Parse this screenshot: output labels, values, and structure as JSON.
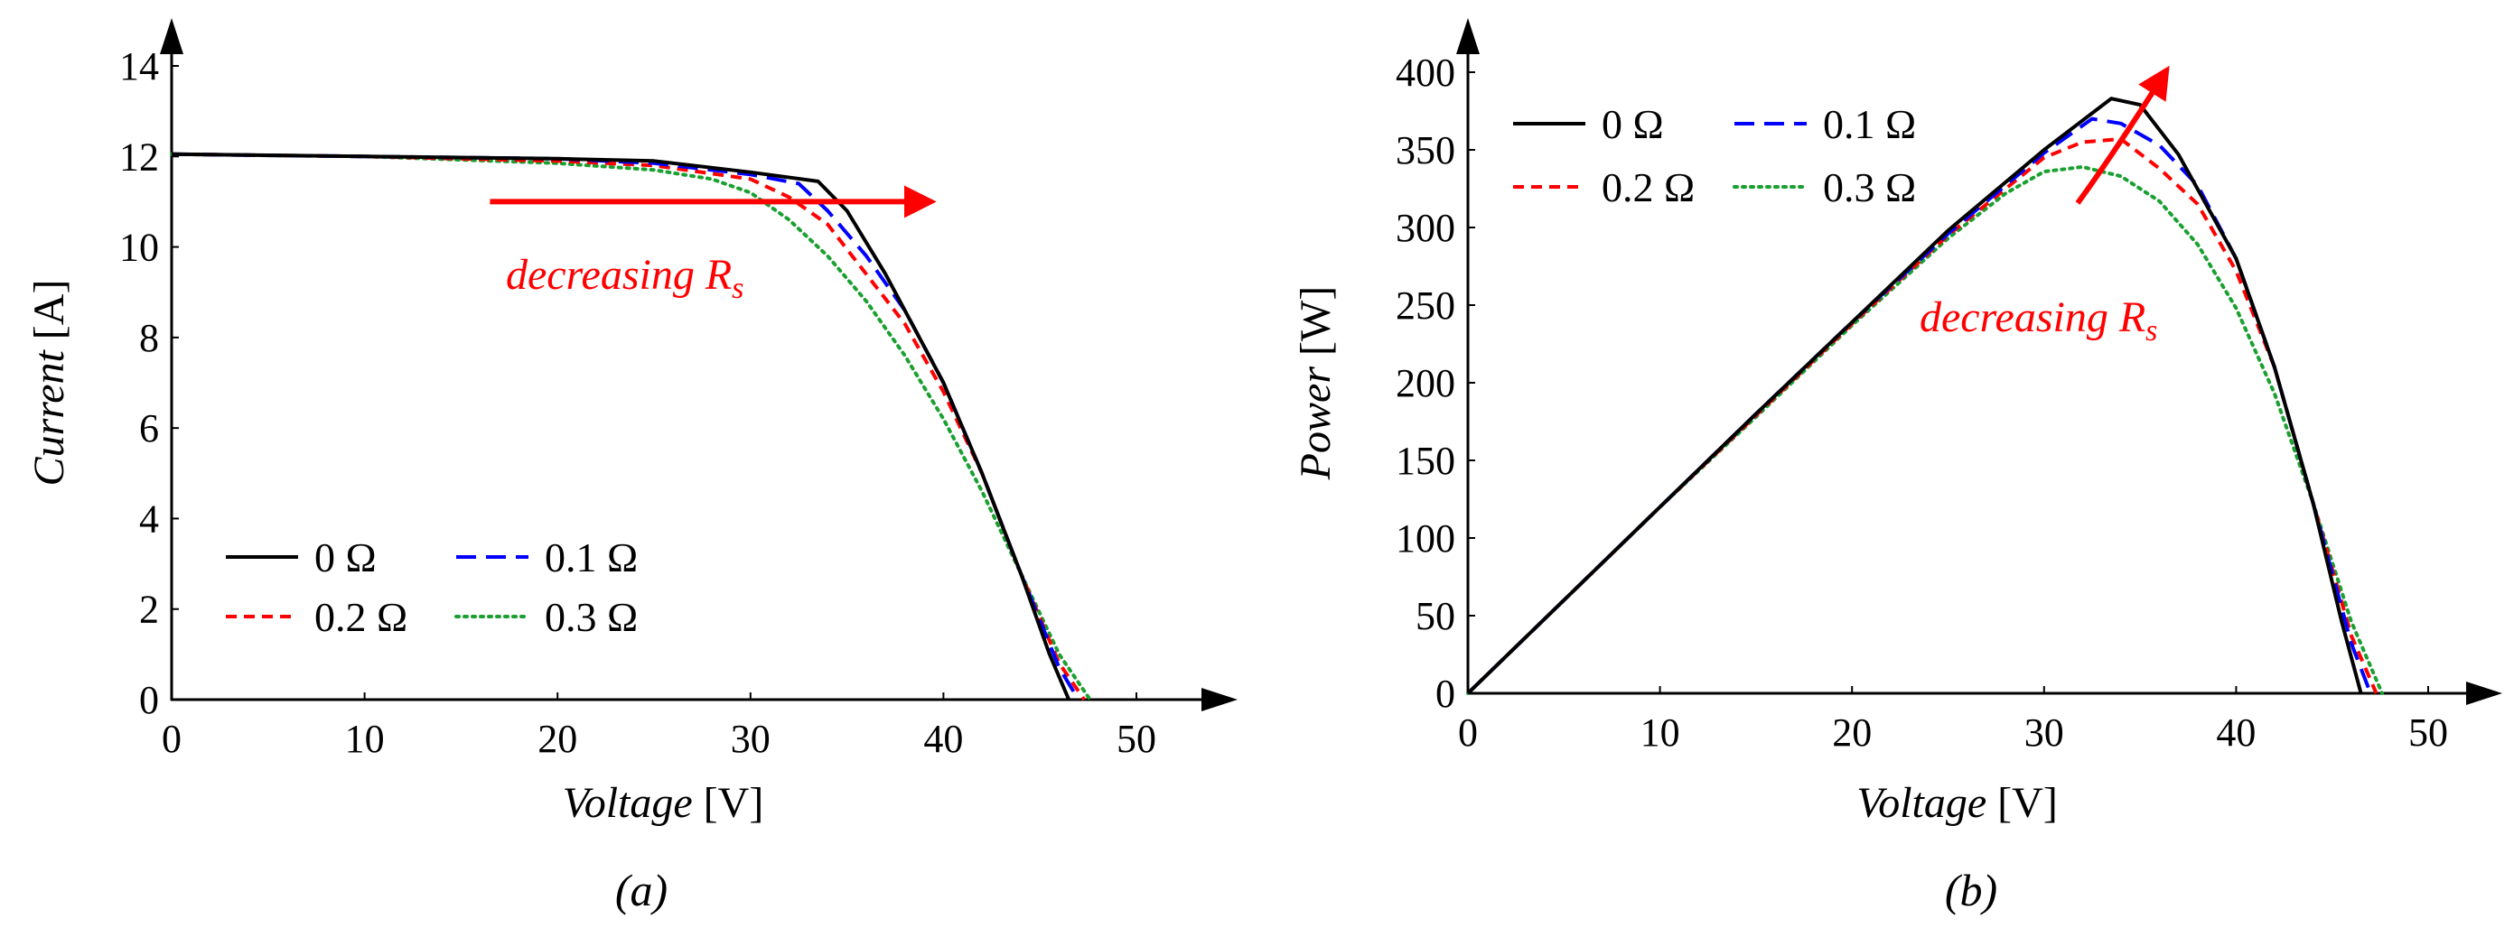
{
  "chart_data": [
    {
      "type": "line",
      "caption": "(a)",
      "xlabel_italic": "Voltage",
      "xlabel_unit": " [V]",
      "ylabel_italic": "Current",
      "ylabel_unit": " [A]",
      "xlim": [
        0,
        50
      ],
      "ylim": [
        0,
        14
      ],
      "xticks": [
        0,
        10,
        20,
        30,
        40,
        50
      ],
      "yticks": [
        0,
        2,
        4,
        6,
        8,
        10,
        12,
        14
      ],
      "grid": false,
      "legend_position": "bottom-left",
      "annotation": {
        "text": "decreasing ",
        "symbol": "R",
        "subscript": "s",
        "color": "#ff0000"
      },
      "series": [
        {
          "name": "0 Ω",
          "color": "#000000",
          "dash": "solid",
          "x": [
            0,
            10,
            20,
            25,
            30,
            33.5,
            35,
            37,
            40,
            42,
            44,
            45.5,
            46.5
          ],
          "y": [
            12.05,
            12.0,
            11.95,
            11.9,
            11.65,
            11.45,
            10.8,
            9.4,
            7.0,
            5.0,
            2.8,
            1.0,
            0
          ]
        },
        {
          "name": "0.1 Ω",
          "color": "#0000ff",
          "dash": "long",
          "x": [
            0,
            10,
            20,
            25,
            30,
            32.5,
            34,
            36,
            38,
            40,
            42,
            44,
            46,
            47
          ],
          "y": [
            12.05,
            12.0,
            11.95,
            11.85,
            11.6,
            11.4,
            10.8,
            9.8,
            8.6,
            7.0,
            5.0,
            2.8,
            0.7,
            0
          ]
        },
        {
          "name": "0.2 Ω",
          "color": "#ff0000",
          "dash": "short",
          "x": [
            0,
            10,
            20,
            25,
            30,
            32,
            34,
            36,
            38,
            40,
            42,
            44,
            46,
            47.3
          ],
          "y": [
            12.05,
            12.0,
            11.9,
            11.8,
            11.5,
            11.1,
            10.5,
            9.4,
            8.3,
            6.8,
            5.0,
            2.8,
            0.8,
            0
          ]
        },
        {
          "name": "0.3 Ω",
          "color": "#1aa030",
          "dash": "dotted",
          "x": [
            0,
            10,
            20,
            25,
            28,
            30,
            32,
            34,
            36,
            38,
            40,
            42,
            44,
            46,
            47.6
          ],
          "y": [
            12.05,
            12.0,
            11.85,
            11.7,
            11.5,
            11.2,
            10.6,
            9.8,
            8.8,
            7.6,
            6.2,
            4.6,
            2.8,
            1.0,
            0
          ]
        }
      ]
    },
    {
      "type": "line",
      "caption": "(b)",
      "xlabel_italic": "Voltage",
      "xlabel_unit": " [V]",
      "ylabel_italic": "Power",
      "ylabel_unit": " [W]",
      "xlim": [
        0,
        50
      ],
      "ylim": [
        0,
        400
      ],
      "xticks": [
        0,
        10,
        20,
        30,
        40,
        50
      ],
      "yticks": [
        0,
        50,
        100,
        150,
        200,
        250,
        300,
        350,
        400
      ],
      "grid": false,
      "legend_position": "top-left",
      "annotation": {
        "text": "decreasing ",
        "symbol": "R",
        "subscript": "s",
        "color": "#ff0000"
      },
      "series": [
        {
          "name": "0 Ω",
          "color": "#000000",
          "dash": "solid",
          "x": [
            0,
            5,
            10,
            15,
            20,
            25,
            30,
            33.5,
            35,
            37,
            40,
            42,
            44,
            45.5,
            46.5
          ],
          "y": [
            0,
            60,
            120,
            180,
            239,
            298,
            350,
            383,
            379,
            347,
            280,
            210,
            123,
            46,
            0
          ]
        },
        {
          "name": "0.1 Ω",
          "color": "#0000ff",
          "dash": "long",
          "x": [
            0,
            5,
            10,
            15,
            20,
            25,
            30,
            32.5,
            34,
            36,
            38,
            40,
            42,
            44,
            46,
            47
          ],
          "y": [
            0,
            60,
            120,
            180,
            239,
            296,
            348,
            370,
            367,
            353,
            327,
            280,
            210,
            123,
            32,
            0
          ]
        },
        {
          "name": "0.2 Ω",
          "color": "#ff0000",
          "dash": "short",
          "x": [
            0,
            5,
            10,
            15,
            20,
            25,
            30,
            32,
            34,
            36,
            38,
            40,
            42,
            44,
            46,
            47.3
          ],
          "y": [
            0,
            60,
            120,
            179,
            238,
            295,
            345,
            355,
            357,
            338,
            315,
            272,
            210,
            123,
            37,
            0
          ]
        },
        {
          "name": "0.3 Ω",
          "color": "#1aa030",
          "dash": "dotted",
          "x": [
            0,
            5,
            10,
            15,
            20,
            25,
            28,
            30,
            32,
            34,
            36,
            38,
            40,
            42,
            44,
            46,
            47.6
          ],
          "y": [
            0,
            60,
            120,
            178,
            237,
            293,
            322,
            336,
            339,
            333,
            317,
            289,
            248,
            193,
            123,
            46,
            0
          ]
        }
      ]
    }
  ]
}
